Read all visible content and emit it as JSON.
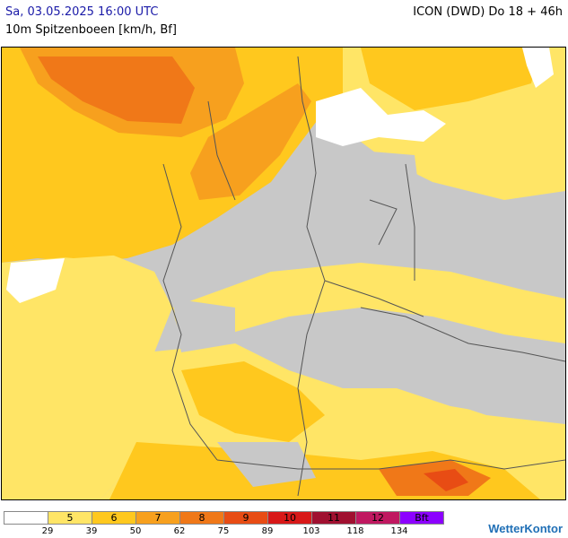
{
  "header": {
    "date": "Sa, 03.05.2025 16:00 UTC",
    "model": "ICON (DWD) Do 18 + 46h",
    "variable": "10m Spitzenboeen [km/h, Bf]"
  },
  "legend": {
    "classes": [
      {
        "bf": "",
        "color": "#ffffff"
      },
      {
        "bf": "5",
        "color": "#ffe566"
      },
      {
        "bf": "6",
        "color": "#ffc81e"
      },
      {
        "bf": "7",
        "color": "#f7a01e"
      },
      {
        "bf": "8",
        "color": "#f07818"
      },
      {
        "bf": "9",
        "color": "#e84c14"
      },
      {
        "bf": "10",
        "color": "#d81818"
      },
      {
        "bf": "11",
        "color": "#a01030"
      },
      {
        "bf": "12",
        "color": "#c01860"
      },
      {
        "bf": "Bft",
        "color": "#8c00ff"
      }
    ],
    "ticks": [
      "29",
      "39",
      "50",
      "62",
      "75",
      "89",
      "103",
      "118",
      "134"
    ]
  },
  "colors": {
    "land_calm": "#c8c8c8",
    "sea_white": "#ffffff",
    "border_line": "#555555"
  },
  "logo": {
    "text": "WetterKontor"
  }
}
